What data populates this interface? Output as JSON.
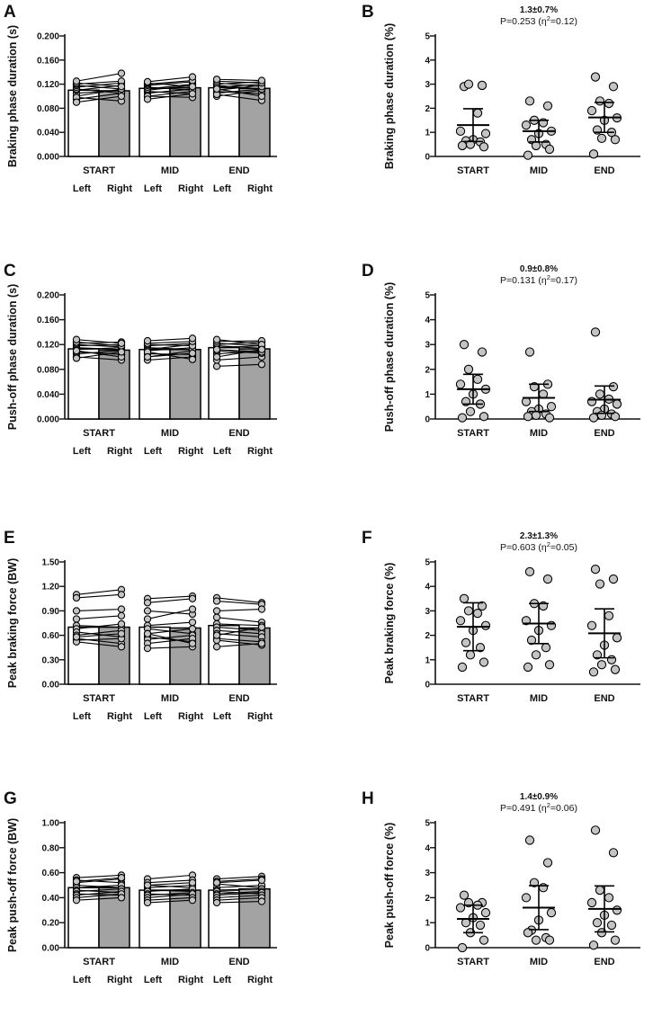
{
  "figure": {
    "colors": {
      "axis": "#111111",
      "bar_left": "#ffffff",
      "bar_right": "#a3a3a3",
      "point_fill": "#c4c4c4",
      "stroke": "#000000"
    },
    "side_labels": [
      "Left",
      "Right"
    ]
  },
  "chart_data": [
    {
      "letter": "A",
      "type": "bar",
      "kind": "paired",
      "ylabel": "Braking phase duration (s)",
      "ylim": [
        0,
        0.2
      ],
      "yticks": [
        0,
        0.04,
        0.08,
        0.12,
        0.16,
        0.2
      ],
      "ytick_labels": [
        "0.000",
        "0.040",
        "0.080",
        "0.120",
        "0.160",
        "0.200"
      ],
      "categories": [
        "START",
        "MID",
        "END"
      ],
      "series": [
        {
          "name": "Left",
          "values": [
            0.11,
            0.113,
            0.114
          ]
        },
        {
          "name": "Right",
          "values": [
            0.109,
            0.114,
            0.113
          ]
        }
      ],
      "pairs": [
        [
          [
            0.095,
            0.105
          ],
          [
            0.1,
            0.112
          ],
          [
            0.105,
            0.11
          ],
          [
            0.11,
            0.118
          ],
          [
            0.112,
            0.105
          ],
          [
            0.115,
            0.122
          ],
          [
            0.118,
            0.112
          ],
          [
            0.12,
            0.125
          ],
          [
            0.122,
            0.116
          ],
          [
            0.125,
            0.138
          ],
          [
            0.098,
            0.092
          ],
          [
            0.09,
            0.1
          ]
        ],
        [
          [
            0.1,
            0.108
          ],
          [
            0.105,
            0.112
          ],
          [
            0.108,
            0.104
          ],
          [
            0.11,
            0.118
          ],
          [
            0.112,
            0.12
          ],
          [
            0.115,
            0.11
          ],
          [
            0.118,
            0.124
          ],
          [
            0.12,
            0.126
          ],
          [
            0.122,
            0.116
          ],
          [
            0.124,
            0.132
          ],
          [
            0.1,
            0.098
          ],
          [
            0.095,
            0.104
          ]
        ],
        [
          [
            0.1,
            0.11
          ],
          [
            0.105,
            0.112
          ],
          [
            0.108,
            0.104
          ],
          [
            0.11,
            0.118
          ],
          [
            0.115,
            0.12
          ],
          [
            0.118,
            0.112
          ],
          [
            0.12,
            0.124
          ],
          [
            0.122,
            0.116
          ],
          [
            0.125,
            0.122
          ],
          [
            0.128,
            0.126
          ],
          [
            0.103,
            0.093
          ],
          [
            0.112,
            0.1
          ]
        ]
      ]
    },
    {
      "letter": "B",
      "type": "scatter",
      "kind": "dot",
      "ylabel": "Braking phase duration (%)",
      "ylim": [
        0,
        5
      ],
      "yticks": [
        0,
        1,
        2,
        3,
        4,
        5
      ],
      "ytick_labels": [
        "0",
        "1",
        "2",
        "3",
        "4",
        "5"
      ],
      "categories": [
        "START",
        "MID",
        "END"
      ],
      "stat_line": "1.3±0.7%",
      "p_text": "P=0.253 (η",
      "p_sup": "2",
      "p_tail": "=0.12)",
      "groups": [
        {
          "mean": 1.3,
          "sd": 0.68,
          "points": [
            2.9,
            2.95,
            3.0,
            1.8,
            1.05,
            0.95,
            0.7,
            0.65,
            0.6,
            0.5,
            0.4,
            0.45
          ]
        },
        {
          "mean": 1.05,
          "sd": 0.45,
          "points": [
            2.3,
            2.1,
            1.5,
            1.4,
            1.3,
            1.05,
            0.95,
            0.7,
            0.5,
            0.45,
            0.3,
            0.05
          ]
        },
        {
          "mean": 1.62,
          "sd": 0.62,
          "points": [
            3.3,
            2.9,
            2.3,
            2.2,
            1.9,
            1.6,
            1.5,
            1.1,
            1.0,
            0.75,
            0.7,
            0.1
          ]
        }
      ]
    },
    {
      "letter": "C",
      "type": "bar",
      "kind": "paired",
      "ylabel": "Push-off phase duration (s)",
      "ylim": [
        0,
        0.2
      ],
      "yticks": [
        0,
        0.04,
        0.08,
        0.12,
        0.16,
        0.2
      ],
      "ytick_labels": [
        "0.000",
        "0.040",
        "0.080",
        "0.120",
        "0.160",
        "0.200"
      ],
      "categories": [
        "START",
        "MID",
        "END"
      ],
      "series": [
        {
          "name": "Left",
          "values": [
            0.113,
            0.112,
            0.115
          ]
        },
        {
          "name": "Right",
          "values": [
            0.111,
            0.112,
            0.113
          ]
        }
      ],
      "pairs": [
        [
          [
            0.1,
            0.095
          ],
          [
            0.105,
            0.11
          ],
          [
            0.108,
            0.104
          ],
          [
            0.112,
            0.115
          ],
          [
            0.115,
            0.112
          ],
          [
            0.118,
            0.12
          ],
          [
            0.12,
            0.116
          ],
          [
            0.122,
            0.124
          ],
          [
            0.124,
            0.118
          ],
          [
            0.128,
            0.122
          ],
          [
            0.11,
            0.1
          ],
          [
            0.098,
            0.108
          ]
        ],
        [
          [
            0.095,
            0.1
          ],
          [
            0.1,
            0.11
          ],
          [
            0.105,
            0.104
          ],
          [
            0.11,
            0.115
          ],
          [
            0.112,
            0.12
          ],
          [
            0.115,
            0.112
          ],
          [
            0.118,
            0.122
          ],
          [
            0.12,
            0.118
          ],
          [
            0.122,
            0.125
          ],
          [
            0.126,
            0.13
          ],
          [
            0.108,
            0.096
          ],
          [
            0.1,
            0.106
          ]
        ],
        [
          [
            0.085,
            0.088
          ],
          [
            0.095,
            0.1
          ],
          [
            0.105,
            0.11
          ],
          [
            0.11,
            0.106
          ],
          [
            0.115,
            0.118
          ],
          [
            0.118,
            0.114
          ],
          [
            0.12,
            0.124
          ],
          [
            0.122,
            0.118
          ],
          [
            0.125,
            0.126
          ],
          [
            0.128,
            0.12
          ],
          [
            0.112,
            0.108
          ],
          [
            0.1,
            0.112
          ]
        ]
      ]
    },
    {
      "letter": "D",
      "type": "scatter",
      "kind": "dot",
      "ylabel": "Push-off phase duration (%)",
      "ylim": [
        0,
        5
      ],
      "yticks": [
        0,
        1,
        2,
        3,
        4,
        5
      ],
      "ytick_labels": [
        "0",
        "1",
        "2",
        "3",
        "4",
        "5"
      ],
      "categories": [
        "START",
        "MID",
        "END"
      ],
      "stat_line": "0.9±0.8%",
      "p_text": "P=0.131 (η",
      "p_sup": "2",
      "p_tail": "=0.17)",
      "groups": [
        {
          "mean": 1.2,
          "sd": 0.6,
          "points": [
            3.0,
            2.7,
            2.0,
            1.6,
            1.4,
            1.2,
            1.0,
            0.7,
            0.6,
            0.3,
            0.1,
            0.05
          ]
        },
        {
          "mean": 0.85,
          "sd": 0.55,
          "points": [
            2.7,
            1.4,
            1.3,
            1.0,
            0.7,
            0.5,
            0.4,
            0.3,
            0.2,
            0.15,
            0.05,
            0.1
          ]
        },
        {
          "mean": 0.78,
          "sd": 0.55,
          "points": [
            3.5,
            1.3,
            1.0,
            0.8,
            0.7,
            0.6,
            0.4,
            0.3,
            0.2,
            0.15,
            0.1,
            0.05
          ]
        }
      ]
    },
    {
      "letter": "E",
      "type": "bar",
      "kind": "paired",
      "ylabel": "Peak braking force (BW)",
      "ylim": [
        0,
        1.5
      ],
      "yticks": [
        0,
        0.3,
        0.6,
        0.9,
        1.2,
        1.5
      ],
      "ytick_labels": [
        "0.00",
        "0.30",
        "0.60",
        "0.90",
        "1.20",
        "1.50"
      ],
      "categories": [
        "START",
        "MID",
        "END"
      ],
      "series": [
        {
          "name": "Left",
          "values": [
            0.7,
            0.7,
            0.72
          ]
        },
        {
          "name": "Right",
          "values": [
            0.7,
            0.69,
            0.69
          ]
        }
      ],
      "pairs": [
        [
          [
            1.1,
            1.16
          ],
          [
            1.06,
            1.1
          ],
          [
            0.9,
            0.92
          ],
          [
            0.8,
            0.84
          ],
          [
            0.72,
            0.7
          ],
          [
            0.68,
            0.74
          ],
          [
            0.64,
            0.58
          ],
          [
            0.6,
            0.66
          ],
          [
            0.56,
            0.5
          ],
          [
            0.54,
            0.56
          ],
          [
            0.52,
            0.46
          ],
          [
            0.58,
            0.62
          ]
        ],
        [
          [
            1.05,
            1.08
          ],
          [
            1.0,
            1.05
          ],
          [
            0.9,
            0.86
          ],
          [
            0.8,
            0.92
          ],
          [
            0.72,
            0.76
          ],
          [
            0.68,
            0.62
          ],
          [
            0.62,
            0.68
          ],
          [
            0.58,
            0.52
          ],
          [
            0.55,
            0.6
          ],
          [
            0.5,
            0.56
          ],
          [
            0.44,
            0.46
          ],
          [
            0.62,
            0.5
          ]
        ],
        [
          [
            1.06,
            1.0
          ],
          [
            1.02,
            0.98
          ],
          [
            0.9,
            0.92
          ],
          [
            0.82,
            0.76
          ],
          [
            0.74,
            0.72
          ],
          [
            0.7,
            0.66
          ],
          [
            0.66,
            0.62
          ],
          [
            0.62,
            0.58
          ],
          [
            0.56,
            0.52
          ],
          [
            0.54,
            0.48
          ],
          [
            0.46,
            0.5
          ],
          [
            0.6,
            0.7
          ]
        ]
      ]
    },
    {
      "letter": "F",
      "type": "scatter",
      "kind": "dot",
      "ylabel": "Peak braking force (%)",
      "ylim": [
        0,
        5
      ],
      "yticks": [
        0,
        1,
        2,
        3,
        4,
        5
      ],
      "ytick_labels": [
        "0",
        "1",
        "2",
        "3",
        "4",
        "5"
      ],
      "categories": [
        "START",
        "MID",
        "END"
      ],
      "stat_line": "2.3±1.3%",
      "p_text": "P=0.603 (η",
      "p_sup": "2",
      "p_tail": "=0.05)",
      "groups": [
        {
          "mean": 2.35,
          "sd": 0.98,
          "points": [
            3.5,
            3.2,
            3.0,
            2.9,
            2.6,
            2.4,
            2.2,
            1.7,
            1.5,
            1.2,
            0.9,
            0.7
          ]
        },
        {
          "mean": 2.48,
          "sd": 0.82,
          "points": [
            4.6,
            4.3,
            3.3,
            3.2,
            2.6,
            2.4,
            2.2,
            1.8,
            1.5,
            1.2,
            0.8,
            0.7
          ]
        },
        {
          "mean": 2.08,
          "sd": 1.0,
          "points": [
            4.7,
            4.3,
            4.1,
            2.8,
            2.4,
            1.9,
            1.6,
            1.2,
            1.0,
            0.8,
            0.6,
            0.5
          ]
        }
      ]
    },
    {
      "letter": "G",
      "type": "bar",
      "kind": "paired",
      "ylabel": "Peak push-off force (BW)",
      "ylim": [
        0,
        1.0
      ],
      "yticks": [
        0,
        0.2,
        0.4,
        0.6,
        0.8,
        1.0
      ],
      "ytick_labels": [
        "0.00",
        "0.20",
        "0.40",
        "0.60",
        "0.80",
        "1.00"
      ],
      "categories": [
        "START",
        "MID",
        "END"
      ],
      "series": [
        {
          "name": "Left",
          "values": [
            0.48,
            0.46,
            0.46
          ]
        },
        {
          "name": "Right",
          "values": [
            0.48,
            0.46,
            0.47
          ]
        }
      ],
      "pairs": [
        [
          [
            0.56,
            0.58
          ],
          [
            0.54,
            0.52
          ],
          [
            0.52,
            0.55
          ],
          [
            0.5,
            0.48
          ],
          [
            0.48,
            0.5
          ],
          [
            0.46,
            0.44
          ],
          [
            0.45,
            0.47
          ],
          [
            0.43,
            0.42
          ],
          [
            0.42,
            0.45
          ],
          [
            0.4,
            0.43
          ],
          [
            0.38,
            0.4
          ],
          [
            0.53,
            0.56
          ]
        ],
        [
          [
            0.55,
            0.58
          ],
          [
            0.52,
            0.54
          ],
          [
            0.5,
            0.48
          ],
          [
            0.48,
            0.5
          ],
          [
            0.46,
            0.45
          ],
          [
            0.45,
            0.47
          ],
          [
            0.43,
            0.42
          ],
          [
            0.42,
            0.44
          ],
          [
            0.4,
            0.43
          ],
          [
            0.38,
            0.4
          ],
          [
            0.36,
            0.38
          ],
          [
            0.5,
            0.52
          ]
        ],
        [
          [
            0.55,
            0.57
          ],
          [
            0.53,
            0.55
          ],
          [
            0.51,
            0.48
          ],
          [
            0.48,
            0.5
          ],
          [
            0.46,
            0.47
          ],
          [
            0.45,
            0.43
          ],
          [
            0.43,
            0.45
          ],
          [
            0.42,
            0.44
          ],
          [
            0.4,
            0.42
          ],
          [
            0.38,
            0.4
          ],
          [
            0.36,
            0.37
          ],
          [
            0.52,
            0.54
          ]
        ]
      ]
    },
    {
      "letter": "H",
      "type": "scatter",
      "kind": "dot",
      "ylabel": "Peak push-off force (%)",
      "ylim": [
        0,
        5
      ],
      "yticks": [
        0,
        1,
        2,
        3,
        4,
        5
      ],
      "ytick_labels": [
        "0",
        "1",
        "2",
        "3",
        "4",
        "5"
      ],
      "categories": [
        "START",
        "MID",
        "END"
      ],
      "stat_line": "1.4±0.9%",
      "p_text": "P=0.491 (η",
      "p_sup": "2",
      "p_tail": "=0.06)",
      "groups": [
        {
          "mean": 1.15,
          "sd": 0.55,
          "points": [
            2.1,
            1.8,
            1.8,
            1.7,
            1.6,
            1.4,
            1.2,
            1.0,
            0.9,
            0.6,
            0.3,
            0.0
          ]
        },
        {
          "mean": 1.6,
          "sd": 0.88,
          "points": [
            4.3,
            3.4,
            2.6,
            2.4,
            2.0,
            1.4,
            1.1,
            0.7,
            0.4,
            0.3,
            0.3,
            0.6
          ]
        },
        {
          "mean": 1.55,
          "sd": 0.92,
          "points": [
            4.7,
            3.8,
            2.3,
            2.0,
            1.8,
            1.5,
            1.3,
            1.0,
            0.9,
            0.6,
            0.3,
            0.1
          ]
        }
      ]
    }
  ]
}
